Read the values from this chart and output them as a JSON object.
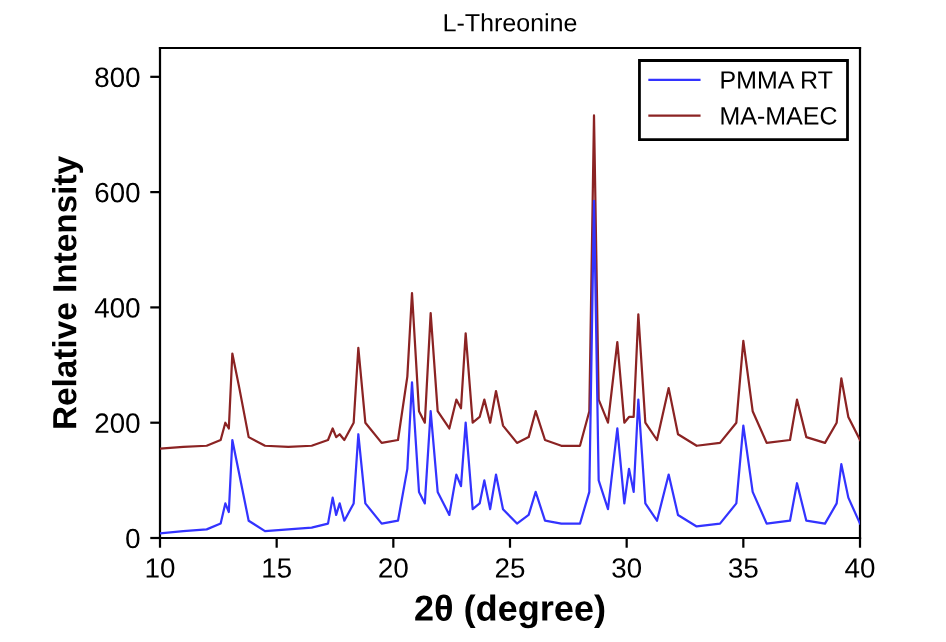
{
  "chart_data": {
    "type": "line",
    "title": "L-Threonine",
    "xlabel": "2θ (degree)",
    "ylabel": "Relative Intensity",
    "x": [
      10,
      11,
      12,
      12.6,
      12.8,
      12.95,
      13.1,
      13.4,
      13.8,
      14.5,
      15.5,
      16.5,
      17.2,
      17.4,
      17.55,
      17.7,
      17.9,
      18.3,
      18.5,
      18.8,
      19.5,
      20.2,
      20.6,
      20.8,
      21.1,
      21.35,
      21.6,
      21.9,
      22.4,
      22.7,
      22.9,
      23.1,
      23.4,
      23.7,
      23.9,
      24.15,
      24.4,
      24.7,
      25.3,
      25.8,
      26.1,
      26.5,
      27.2,
      28.0,
      28.4,
      28.6,
      28.8,
      29.2,
      29.6,
      29.9,
      30.1,
      30.3,
      30.5,
      30.8,
      31.3,
      31.8,
      32.2,
      33.0,
      34.0,
      34.7,
      35.0,
      35.4,
      36.0,
      37.0,
      37.3,
      37.7,
      38.5,
      39.0,
      39.2,
      39.5,
      40
    ],
    "series": [
      {
        "name": "PMMA RT",
        "color": "#3333ff",
        "values": [
          8,
          12,
          15,
          25,
          60,
          45,
          170,
          110,
          30,
          12,
          15,
          18,
          25,
          70,
          40,
          60,
          30,
          60,
          180,
          60,
          25,
          30,
          120,
          270,
          80,
          60,
          220,
          80,
          40,
          110,
          90,
          200,
          50,
          60,
          100,
          50,
          110,
          50,
          25,
          40,
          80,
          30,
          25,
          25,
          80,
          585,
          100,
          50,
          190,
          60,
          120,
          80,
          240,
          60,
          30,
          110,
          40,
          20,
          25,
          60,
          195,
          80,
          25,
          30,
          95,
          30,
          25,
          60,
          128,
          70,
          25
        ]
      },
      {
        "name": "MA-MAEC",
        "color": "#8b2323",
        "values": [
          155,
          158,
          160,
          170,
          200,
          190,
          320,
          260,
          175,
          160,
          158,
          160,
          170,
          190,
          175,
          180,
          170,
          200,
          330,
          200,
          165,
          170,
          280,
          425,
          220,
          200,
          390,
          220,
          190,
          240,
          225,
          355,
          200,
          210,
          240,
          200,
          255,
          195,
          165,
          175,
          220,
          170,
          160,
          160,
          220,
          733,
          240,
          200,
          340,
          200,
          210,
          210,
          388,
          200,
          170,
          260,
          180,
          160,
          165,
          200,
          342,
          220,
          165,
          170,
          240,
          175,
          165,
          200,
          277,
          210,
          170
        ]
      }
    ],
    "xlim": [
      10,
      40
    ],
    "xticks": [
      10,
      15,
      20,
      25,
      30,
      35,
      40
    ],
    "ylim": [
      0,
      850
    ],
    "yticks": [
      0,
      200,
      400,
      600,
      800
    ],
    "legend": "top right",
    "grid": false,
    "marker": "none",
    "line_style": "solid"
  }
}
